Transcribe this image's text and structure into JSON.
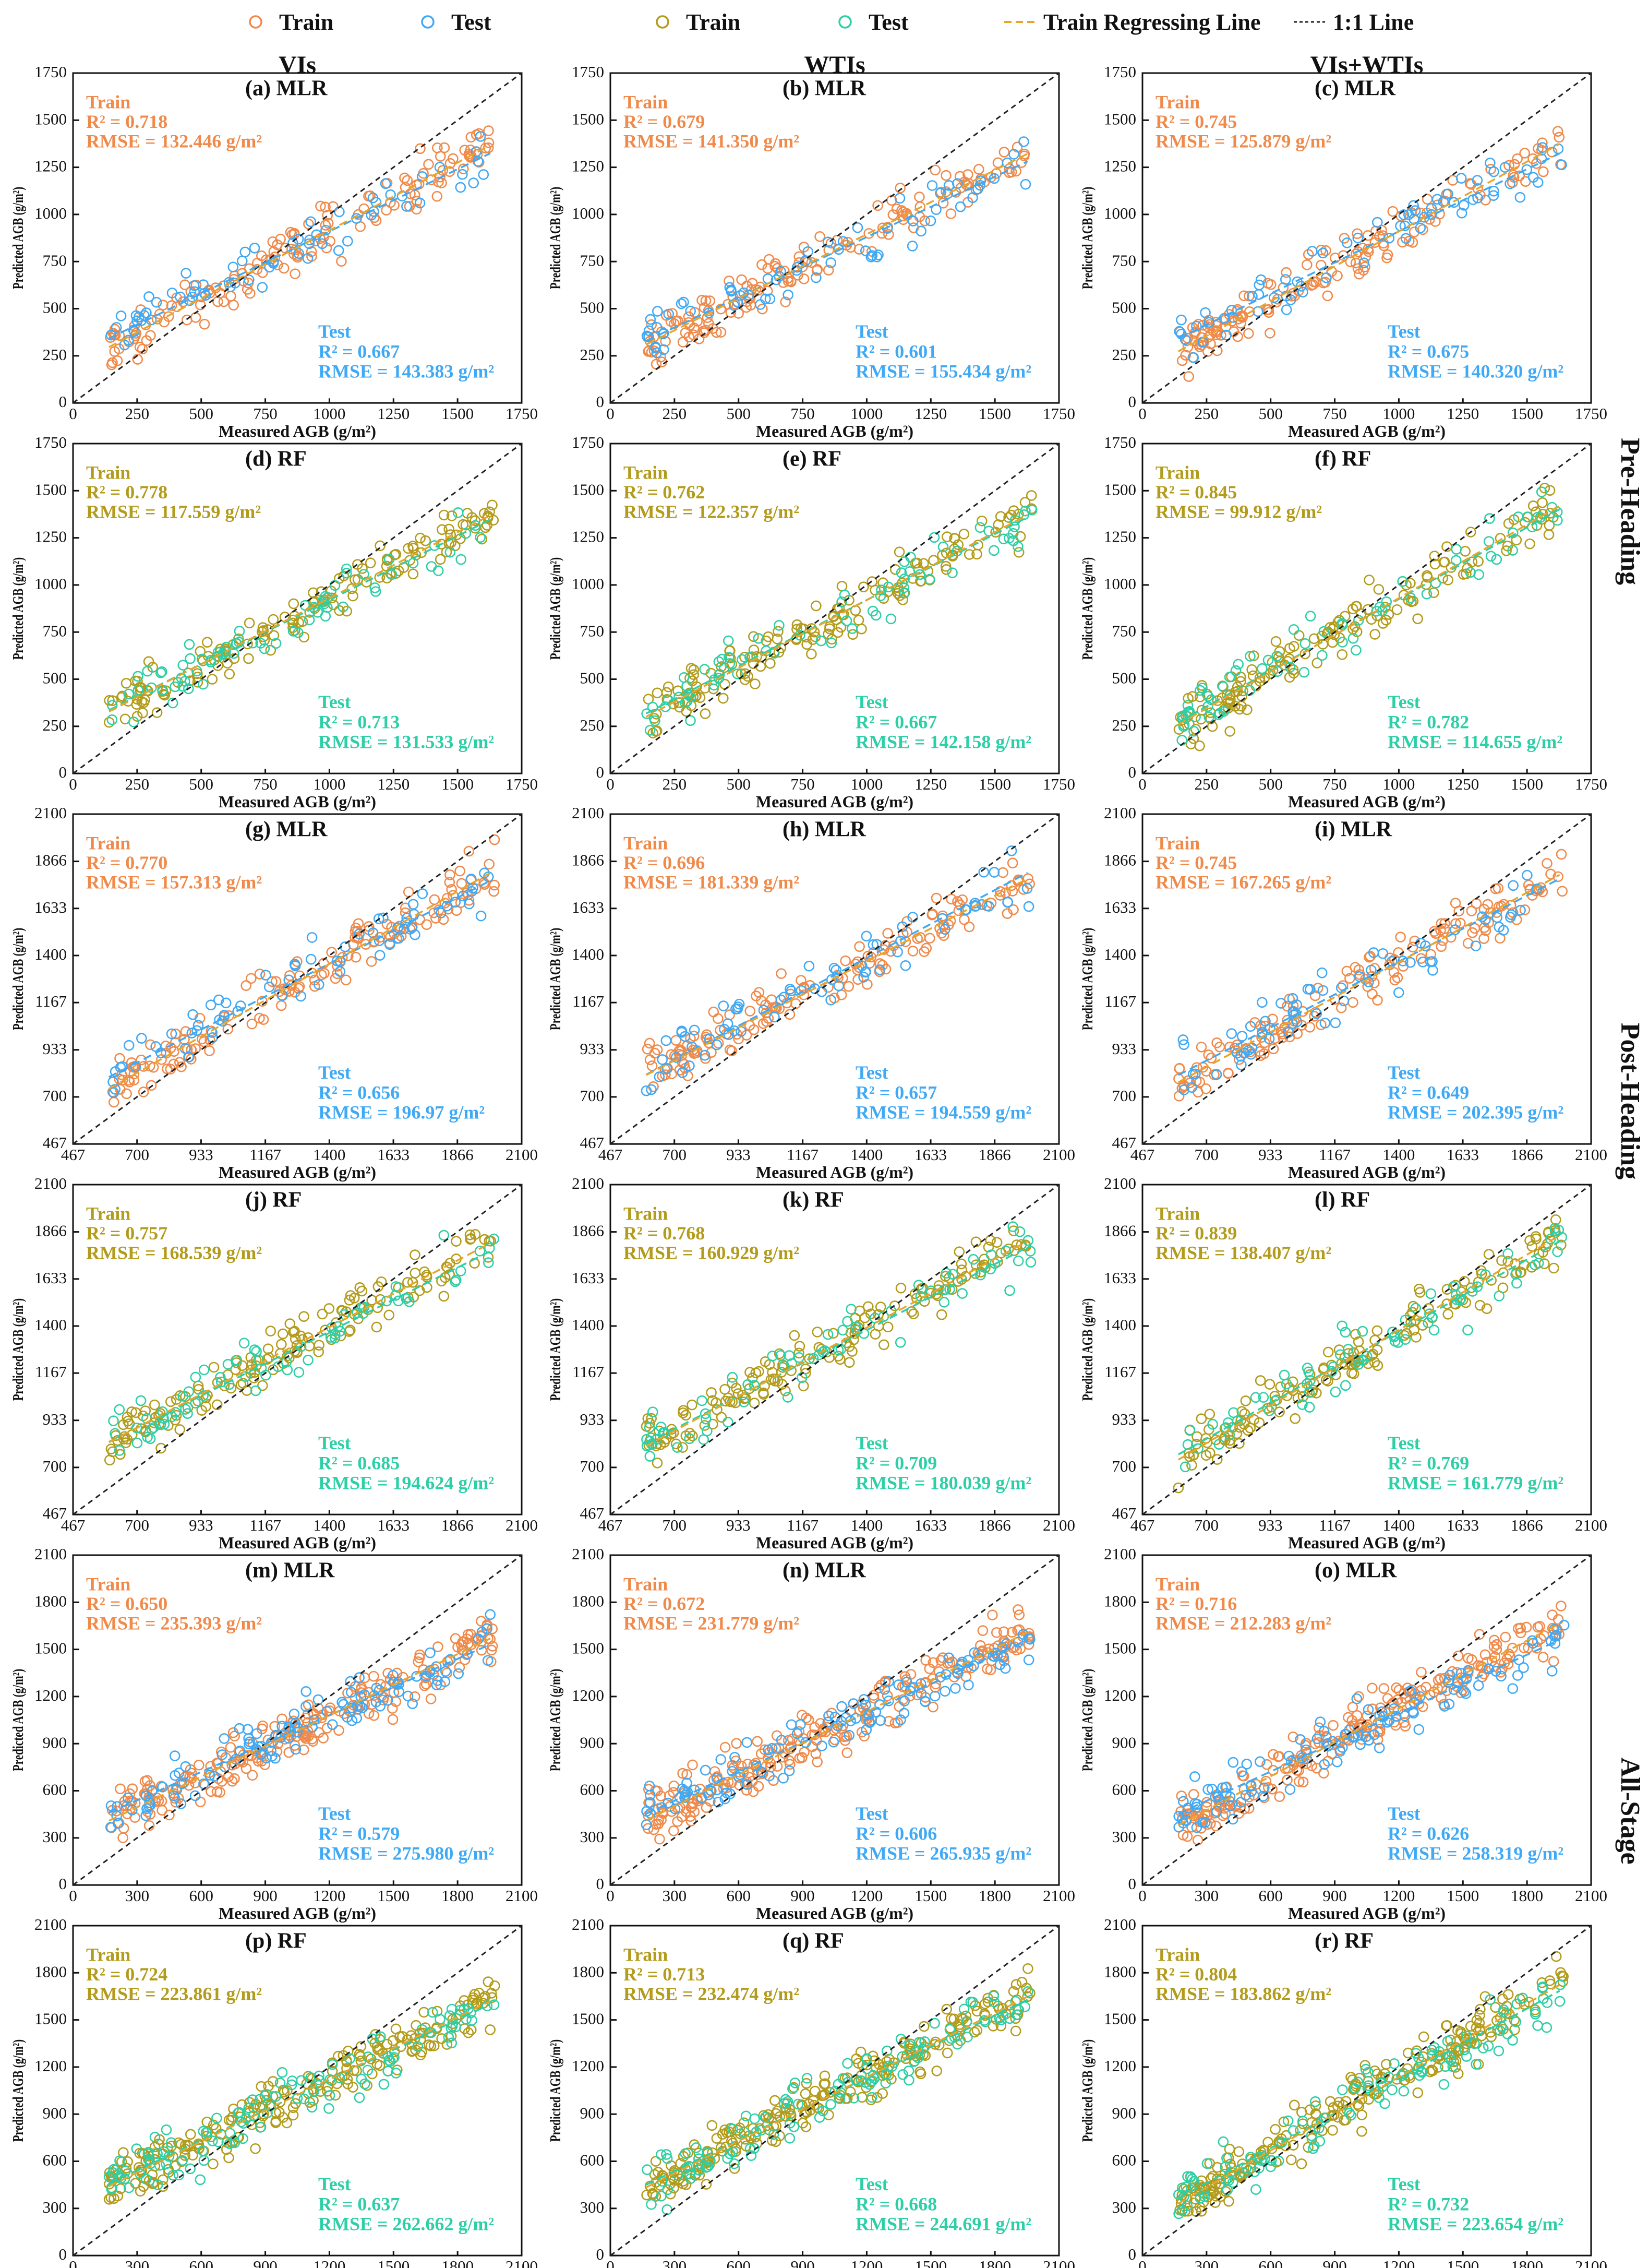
{
  "legend": [
    {
      "label": "Train",
      "marker": "circle",
      "color": "#f08a4b"
    },
    {
      "label": "Test",
      "marker": "circle",
      "color": "#3fa9f5"
    },
    {
      "label": "Train",
      "marker": "circle",
      "color": "#b39b1b"
    },
    {
      "label": "Test",
      "marker": "circle",
      "color": "#2ccfa6"
    },
    {
      "label": "Train Regressing Line",
      "marker": "dash",
      "color": "#e8a52a"
    },
    {
      "label": "1:1 Line",
      "marker": "dot",
      "color": "#222222"
    }
  ],
  "column_titles": [
    "VIs",
    "WTIs",
    "VIs+WTIs"
  ],
  "row_group_labels": [
    "Pre-Heading",
    "Post-Heading",
    "All-Stage"
  ],
  "colors": {
    "mlr_train": "#f08a4b",
    "mlr_test": "#3fa9f5",
    "rf_train": "#b39b1b",
    "rf_test": "#2ccfa6",
    "reg_line": "#e8a52a",
    "one_to_one": "#222222"
  },
  "chart_data": [
    {
      "type": "scatter",
      "panel": "(a)",
      "model": "MLR",
      "title": "(a)  MLR",
      "xlabel": "Measured AGB (g/m²)",
      "ylabel": "Predicted AGB (g/m²)",
      "range": [
        0,
        1750
      ],
      "ticks": [
        0,
        250,
        500,
        750,
        1000,
        1250,
        1500,
        1750
      ],
      "train": {
        "label": "Train",
        "r2": "R² = 0.718",
        "rmse": "RMSE = 132.446 g/m²",
        "slope": 0.72,
        "intercept": 195
      },
      "test": {
        "label": "Test",
        "r2": "R² = 0.667",
        "rmse": "RMSE = 143.383 g/m²",
        "slope": 0.66,
        "intercept": 250
      }
    },
    {
      "type": "scatter",
      "panel": "(b)",
      "model": "MLR",
      "title": "(b)  MLR",
      "xlabel": "Measured AGB (g/m²)",
      "ylabel": "Predicted AGB (g/m²)",
      "range": [
        0,
        1750
      ],
      "ticks": [
        0,
        250,
        500,
        750,
        1000,
        1250,
        1500,
        1750
      ],
      "train": {
        "label": "Train",
        "r2": "R² = 0.679",
        "rmse": "RMSE = 141.350 g/m²",
        "slope": 0.68,
        "intercept": 215
      },
      "test": {
        "label": "Test",
        "r2": "R² = 0.601",
        "rmse": "RMSE = 155.434 g/m²",
        "slope": 0.64,
        "intercept": 240
      }
    },
    {
      "type": "scatter",
      "panel": "(c)",
      "model": "MLR",
      "title": "(c)  MLR",
      "xlabel": "Measured AGB (g/m²)",
      "ylabel": "Predicted AGB (g/m²)",
      "range": [
        0,
        1750
      ],
      "ticks": [
        0,
        250,
        500,
        750,
        1000,
        1250,
        1500,
        1750
      ],
      "train": {
        "label": "Train",
        "r2": "R² = 0.745",
        "rmse": "RMSE = 125.879 g/m²",
        "slope": 0.74,
        "intercept": 170
      },
      "test": {
        "label": "Test",
        "r2": "R² = 0.675",
        "rmse": "RMSE = 140.320 g/m²",
        "slope": 0.66,
        "intercept": 250
      }
    },
    {
      "type": "scatter",
      "panel": "(d)",
      "model": "RF",
      "title": "(d)  RF",
      "xlabel": "Measured AGB (g/m²)",
      "ylabel": "Predicted AGB (g/m²)",
      "range": [
        0,
        1750
      ],
      "ticks": [
        0,
        250,
        500,
        750,
        1000,
        1250,
        1500,
        1750
      ],
      "train": {
        "label": "Train",
        "r2": "R² = 0.778",
        "rmse": "RMSE = 117.559 g/m²",
        "slope": 0.7,
        "intercept": 230
      },
      "test": {
        "label": "Test",
        "r2": "R² = 0.713",
        "rmse": "RMSE = 131.533 g/m²",
        "slope": 0.68,
        "intercept": 240
      }
    },
    {
      "type": "scatter",
      "panel": "(e)",
      "model": "RF",
      "title": "(e)  RF",
      "xlabel": "Measured AGB (g/m²)",
      "ylabel": "Predicted AGB (g/m²)",
      "range": [
        0,
        1750
      ],
      "ticks": [
        0,
        250,
        500,
        750,
        1000,
        1250,
        1500,
        1750
      ],
      "train": {
        "label": "Train",
        "r2": "R² = 0.762",
        "rmse": "RMSE = 122.357 g/m²",
        "slope": 0.72,
        "intercept": 200
      },
      "test": {
        "label": "Test",
        "r2": "R² = 0.667",
        "rmse": "RMSE = 142.158 g/m²",
        "slope": 0.7,
        "intercept": 220
      }
    },
    {
      "type": "scatter",
      "panel": "(f)",
      "model": "RF",
      "title": "(f)  RF",
      "xlabel": "Measured AGB (g/m²)",
      "ylabel": "Predicted AGB (g/m²)",
      "range": [
        0,
        1750
      ],
      "ticks": [
        0,
        250,
        500,
        750,
        1000,
        1250,
        1500,
        1750
      ],
      "train": {
        "label": "Train",
        "r2": "R² = 0.845",
        "rmse": "RMSE = 99.912 g/m²",
        "slope": 0.78,
        "intercept": 150
      },
      "test": {
        "label": "Test",
        "r2": "R² = 0.782",
        "rmse": "RMSE = 114.655 g/m²",
        "slope": 0.76,
        "intercept": 165
      }
    },
    {
      "type": "scatter",
      "panel": "(g)",
      "model": "MLR",
      "title": "(g)  MLR",
      "xlabel": "Measured AGB (g/m²)",
      "ylabel": "Predicted AGB (g/m²)",
      "range": [
        467,
        2100
      ],
      "ticks": [
        467,
        700,
        933,
        1167,
        1400,
        1633,
        1866,
        2100
      ],
      "train": {
        "label": "Train",
        "r2": "R² = 0.770",
        "rmse": "RMSE = 157.313 g/m²",
        "slope": 0.77,
        "intercept": 280
      },
      "test": {
        "label": "Test",
        "r2": "R² = 0.656",
        "rmse": "RMSE = 196.97 g/m²",
        "slope": 0.7,
        "intercept": 380
      }
    },
    {
      "type": "scatter",
      "panel": "(h)",
      "model": "MLR",
      "title": "(h)  MLR",
      "xlabel": "Measured AGB (g/m²)",
      "ylabel": "Predicted AGB (g/m²)",
      "range": [
        467,
        2100
      ],
      "ticks": [
        467,
        700,
        933,
        1167,
        1400,
        1633,
        1866,
        2100
      ],
      "train": {
        "label": "Train",
        "r2": "R² = 0.696",
        "rmse": "RMSE = 181.339 g/m²",
        "slope": 0.7,
        "intercept": 390
      },
      "test": {
        "label": "Test",
        "r2": "R² = 0.657",
        "rmse": "RMSE = 194.559 g/m²",
        "slope": 0.72,
        "intercept": 380
      }
    },
    {
      "type": "scatter",
      "panel": "(i)",
      "model": "MLR",
      "title": "(i)  MLR",
      "xlabel": "Measured AGB (g/m²)",
      "ylabel": "Predicted AGB (g/m²)",
      "range": [
        467,
        2100
      ],
      "ticks": [
        467,
        700,
        933,
        1167,
        1400,
        1633,
        1866,
        2100
      ],
      "train": {
        "label": "Train",
        "r2": "R² = 0.745",
        "rmse": "RMSE = 167.265 g/m²",
        "slope": 0.74,
        "intercept": 330
      },
      "test": {
        "label": "Test",
        "r2": "R² = 0.649",
        "rmse": "RMSE = 202.395 g/m²",
        "slope": 0.7,
        "intercept": 390
      }
    },
    {
      "type": "scatter",
      "panel": "(j)",
      "model": "RF",
      "title": "(j)  RF",
      "xlabel": "Measured AGB (g/m²)",
      "ylabel": "Predicted AGB (g/m²)",
      "range": [
        467,
        2100
      ],
      "ticks": [
        467,
        700,
        933,
        1167,
        1400,
        1633,
        1866,
        2100
      ],
      "train": {
        "label": "Train",
        "r2": "R² = 0.757",
        "rmse": "RMSE = 168.539 g/m²",
        "slope": 0.71,
        "intercept": 400
      },
      "test": {
        "label": "Test",
        "r2": "R² = 0.685",
        "rmse": "RMSE = 194.624 g/m²",
        "slope": 0.68,
        "intercept": 420
      }
    },
    {
      "type": "scatter",
      "panel": "(k)",
      "model": "RF",
      "title": "(k)  RF",
      "xlabel": "Measured AGB (g/m²)",
      "ylabel": "Predicted AGB (g/m²)",
      "range": [
        467,
        2100
      ],
      "ticks": [
        467,
        700,
        933,
        1167,
        1400,
        1633,
        1866,
        2100
      ],
      "train": {
        "label": "Train",
        "r2": "R² = 0.768",
        "rmse": "RMSE = 160.929 g/m²",
        "slope": 0.73,
        "intercept": 370
      },
      "test": {
        "label": "Test",
        "r2": "R² = 0.709",
        "rmse": "RMSE = 180.039 g/m²",
        "slope": 0.7,
        "intercept": 400
      }
    },
    {
      "type": "scatter",
      "panel": "(l)",
      "model": "RF",
      "title": "(l)  RF",
      "xlabel": "Measured AGB (g/m²)",
      "ylabel": "Predicted AGB (g/m²)",
      "range": [
        467,
        2100
      ],
      "ticks": [
        467,
        700,
        933,
        1167,
        1400,
        1633,
        1866,
        2100
      ],
      "train": {
        "label": "Train",
        "r2": "R² = 0.839",
        "rmse": "RMSE = 138.407 g/m²",
        "slope": 0.8,
        "intercept": 260
      },
      "test": {
        "label": "Test",
        "r2": "R² = 0.769",
        "rmse": "RMSE = 161.779 g/m²",
        "slope": 0.76,
        "intercept": 310
      }
    },
    {
      "type": "scatter",
      "panel": "(m)",
      "model": "MLR",
      "title": "(m)  MLR",
      "xlabel": "Measured AGB (g/m²)",
      "ylabel": "Predicted AGB (g/m²)",
      "range": [
        0,
        2100
      ],
      "ticks": [
        0,
        300,
        600,
        900,
        1200,
        1500,
        1800,
        2100
      ],
      "train": {
        "label": "Train",
        "r2": "R² = 0.650",
        "rmse": "RMSE = 235.393 g/m²",
        "slope": 0.65,
        "intercept": 300
      },
      "test": {
        "label": "Test",
        "r2": "R² = 0.579",
        "rmse": "RMSE = 275.980 g/m²",
        "slope": 0.6,
        "intercept": 360
      }
    },
    {
      "type": "scatter",
      "panel": "(n)",
      "model": "MLR",
      "title": "(n)  MLR",
      "xlabel": "Measured AGB (g/m²)",
      "ylabel": "Predicted AGB (g/m²)",
      "range": [
        0,
        2100
      ],
      "ticks": [
        0,
        300,
        600,
        900,
        1200,
        1500,
        1800,
        2100
      ],
      "train": {
        "label": "Train",
        "r2": "R² = 0.672",
        "rmse": "RMSE = 231.779 g/m²",
        "slope": 0.67,
        "intercept": 300
      },
      "test": {
        "label": "Test",
        "r2": "R² = 0.606",
        "rmse": "RMSE = 265.935 g/m²",
        "slope": 0.62,
        "intercept": 350
      }
    },
    {
      "type": "scatter",
      "panel": "(o)",
      "model": "MLR",
      "title": "(o)  MLR",
      "xlabel": "Measured AGB (g/m²)",
      "ylabel": "Predicted AGB (g/m²)",
      "range": [
        0,
        2100
      ],
      "ticks": [
        0,
        300,
        600,
        900,
        1200,
        1500,
        1800,
        2100
      ],
      "train": {
        "label": "Train",
        "r2": "R² = 0.716",
        "rmse": "RMSE = 212.283 g/m²",
        "slope": 0.72,
        "intercept": 260
      },
      "test": {
        "label": "Test",
        "r2": "R² = 0.626",
        "rmse": "RMSE = 258.319 g/m²",
        "slope": 0.62,
        "intercept": 350
      }
    },
    {
      "type": "scatter",
      "panel": "(p)",
      "model": "RF",
      "title": "(p)  RF",
      "xlabel": "Measured AGB (g/m²)",
      "ylabel": "Predicted AGB (g/m²)",
      "range": [
        0,
        2100
      ],
      "ticks": [
        0,
        300,
        600,
        900,
        1200,
        1500,
        1800,
        2100
      ],
      "train": {
        "label": "Train",
        "r2": "R² = 0.724",
        "rmse": "RMSE = 223.861 g/m²",
        "slope": 0.66,
        "intercept": 330
      },
      "test": {
        "label": "Test",
        "r2": "R² = 0.637",
        "rmse": "RMSE = 262.662 g/m²",
        "slope": 0.64,
        "intercept": 350
      }
    },
    {
      "type": "scatter",
      "panel": "(q)",
      "model": "RF",
      "title": "(q)  RF",
      "xlabel": "Measured AGB (g/m²)",
      "ylabel": "Predicted AGB (g/m²)",
      "range": [
        0,
        2100
      ],
      "ticks": [
        0,
        300,
        600,
        900,
        1200,
        1500,
        1800,
        2100
      ],
      "train": {
        "label": "Train",
        "r2": "R² = 0.713",
        "rmse": "RMSE = 232.474 g/m²",
        "slope": 0.68,
        "intercept": 320
      },
      "test": {
        "label": "Test",
        "r2": "R² = 0.668",
        "rmse": "RMSE = 244.691 g/m²",
        "slope": 0.66,
        "intercept": 340
      }
    },
    {
      "type": "scatter",
      "panel": "(r)",
      "model": "RF",
      "title": "(r)  RF",
      "xlabel": "Measured AGB (g/m²)",
      "ylabel": "Predicted AGB (g/m²)",
      "range": [
        0,
        2100
      ],
      "ticks": [
        0,
        300,
        600,
        900,
        1200,
        1500,
        1800,
        2100
      ],
      "train": {
        "label": "Train",
        "r2": "R² = 0.804",
        "rmse": "RMSE = 183.862 g/m²",
        "slope": 0.78,
        "intercept": 200
      },
      "test": {
        "label": "Test",
        "r2": "R² = 0.732",
        "rmse": "RMSE = 223.654 g/m²",
        "slope": 0.74,
        "intercept": 240
      }
    }
  ]
}
